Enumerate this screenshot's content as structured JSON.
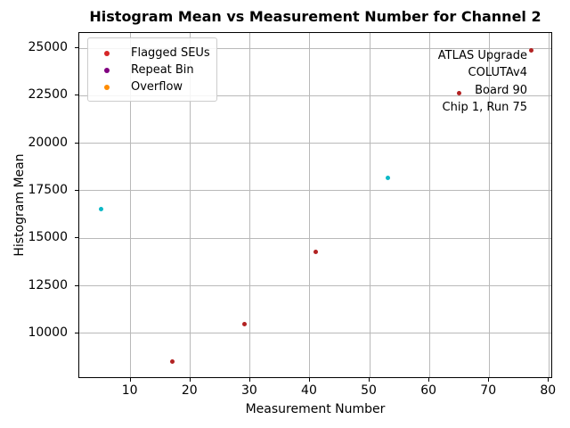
{
  "chart_data": {
    "type": "scatter",
    "title": "Histogram Mean vs Measurement Number for Channel 2",
    "xlabel": "Measurement Number",
    "ylabel": "Histogram Mean",
    "xlim": [
      1.4,
      80.7
    ],
    "ylim": [
      7600,
      25800
    ],
    "xticks": [
      10,
      20,
      30,
      40,
      50,
      60,
      70,
      80
    ],
    "yticks": [
      10000,
      12500,
      15000,
      17500,
      20000,
      22500,
      25000
    ],
    "grid": true,
    "points": [
      {
        "x": 5,
        "y": 16550,
        "series": "unflagged"
      },
      {
        "x": 17,
        "y": 8500,
        "series": "flagged"
      },
      {
        "x": 29,
        "y": 10500,
        "series": "flagged"
      },
      {
        "x": 41,
        "y": 14300,
        "series": "flagged"
      },
      {
        "x": 53,
        "y": 18200,
        "series": "unflagged"
      },
      {
        "x": 65,
        "y": 22650,
        "series": "flagged"
      },
      {
        "x": 77,
        "y": 24900,
        "series": "flagged"
      }
    ],
    "series_colors": {
      "flagged": "#b22222",
      "unflagged": "#0cb8c6"
    },
    "legend": {
      "position": "upper-left",
      "items": [
        {
          "label": "Flagged SEUs",
          "color": "#d62728"
        },
        {
          "label": "Repeat Bin",
          "color": "#800080"
        },
        {
          "label": "Overflow",
          "color": "#ff8c00"
        }
      ]
    },
    "annotation": {
      "align": "right",
      "lines": [
        "ATLAS Upgrade",
        "COLUTAv4",
        "Board 90",
        "Chip 1, Run 75"
      ]
    }
  }
}
